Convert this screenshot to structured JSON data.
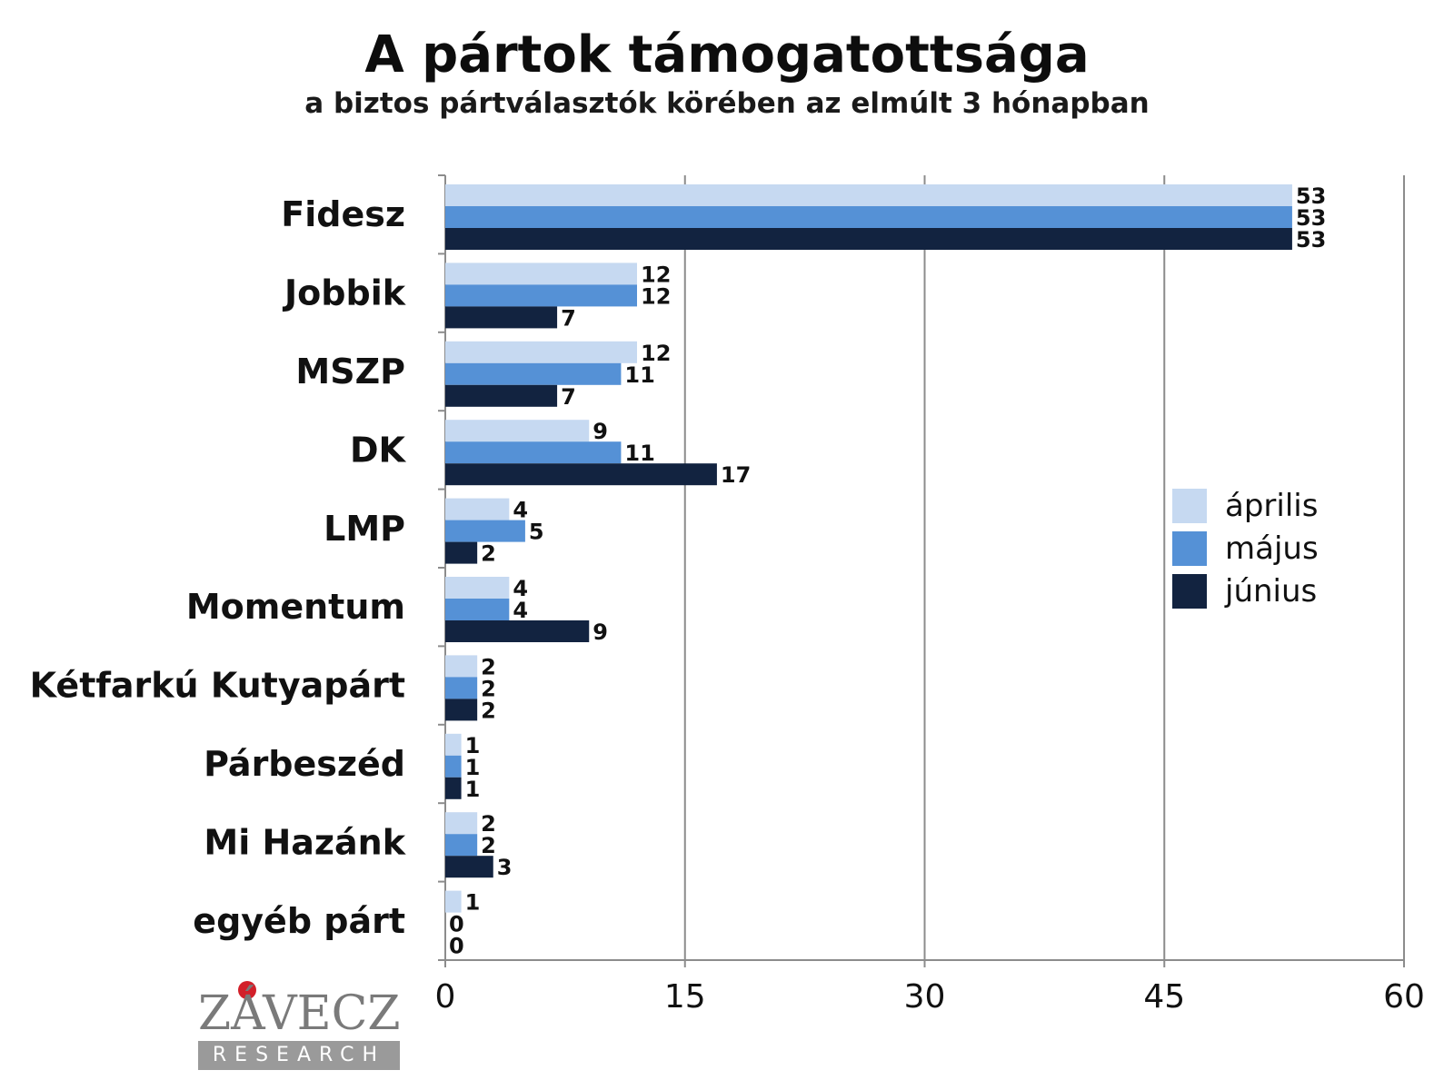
{
  "chart_data": {
    "type": "bar",
    "orientation": "horizontal",
    "title": "A pártok támogatottsága",
    "subtitle": "a biztos pártválasztók körében az elmúlt 3 hónapban",
    "categories": [
      "Fidesz",
      "Jobbik",
      "MSZP",
      "DK",
      "LMP",
      "Momentum",
      "Kétfarkú Kutyapárt",
      "Párbeszéd",
      "Mi Hazánk",
      "egyéb párt"
    ],
    "series": [
      {
        "name": "április",
        "color": "#c6d9f1",
        "values": [
          53,
          12,
          12,
          9,
          4,
          4,
          2,
          1,
          2,
          1
        ]
      },
      {
        "name": "május",
        "color": "#5591d6",
        "values": [
          53,
          12,
          11,
          11,
          5,
          4,
          2,
          1,
          2,
          0
        ]
      },
      {
        "name": "június",
        "color": "#122340",
        "values": [
          53,
          7,
          7,
          17,
          2,
          9,
          2,
          1,
          3,
          0
        ]
      }
    ],
    "xlim": [
      0,
      60
    ],
    "xticks": [
      "0",
      "15",
      "30",
      "45",
      "60"
    ],
    "grid": true,
    "legend_position": "right"
  },
  "logo": {
    "name": "ZÁVECZ",
    "tagline": "RESEARCH",
    "accent_color": "#d2202a"
  }
}
